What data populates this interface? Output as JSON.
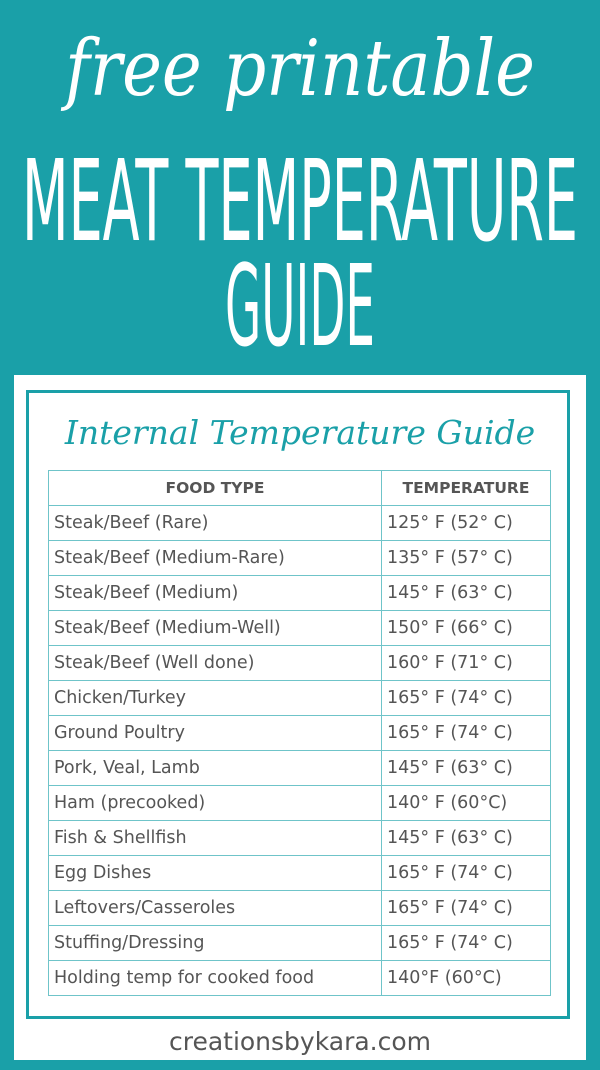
{
  "header": {
    "line1": "free printable",
    "line2": "MEAT TEMPERATURE",
    "line3": "GUIDE"
  },
  "card": {
    "title": "Internal Temperature Guide"
  },
  "table": {
    "columns": [
      "FOOD TYPE",
      "TEMPERATURE"
    ],
    "rows": [
      [
        "Steak/Beef (Rare)",
        "125° F (52° C)"
      ],
      [
        "Steak/Beef (Medium-Rare)",
        "135° F (57° C)"
      ],
      [
        "Steak/Beef (Medium)",
        "145° F (63° C)"
      ],
      [
        "Steak/Beef (Medium-Well)",
        "150° F (66° C)"
      ],
      [
        "Steak/Beef (Well done)",
        "160° F (71° C)"
      ],
      [
        "Chicken/Turkey",
        "165° F (74° C)"
      ],
      [
        "Ground Poultry",
        "165° F (74° C)"
      ],
      [
        "Pork, Veal, Lamb",
        "145° F (63° C)"
      ],
      [
        "Ham (precooked)",
        "140° F (60°C)"
      ],
      [
        "Fish & Shellfish",
        "145° F (63° C)"
      ],
      [
        "Egg Dishes",
        "165° F (74° C)"
      ],
      [
        "Leftovers/Casseroles",
        "165° F (74° C)"
      ],
      [
        "Stuffing/Dressing",
        "165° F (74° C)"
      ],
      [
        "Holding temp for cooked food",
        "140°F (60°C)"
      ]
    ]
  },
  "footer": "creationsbykara.com"
}
